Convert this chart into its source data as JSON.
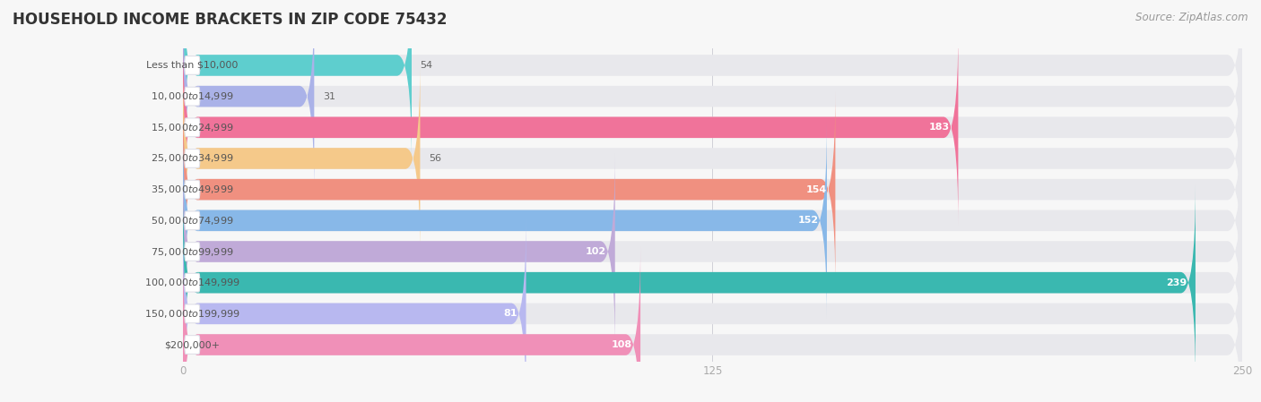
{
  "title": "HOUSEHOLD INCOME BRACKETS IN ZIP CODE 75432",
  "source": "Source: ZipAtlas.com",
  "categories": [
    "Less than $10,000",
    "$10,000 to $14,999",
    "$15,000 to $24,999",
    "$25,000 to $34,999",
    "$35,000 to $49,999",
    "$50,000 to $74,999",
    "$75,000 to $99,999",
    "$100,000 to $149,999",
    "$150,000 to $199,999",
    "$200,000+"
  ],
  "values": [
    54,
    31,
    183,
    56,
    154,
    152,
    102,
    239,
    81,
    108
  ],
  "bar_colors": [
    "#5ecece",
    "#aab2e8",
    "#f0739a",
    "#f5c98a",
    "#f09080",
    "#88b8e8",
    "#c0aad8",
    "#3ab8b0",
    "#b8b8f0",
    "#f090b8"
  ],
  "xlim": [
    0,
    250
  ],
  "xticks": [
    0,
    125,
    250
  ],
  "background_color": "#f7f7f7",
  "bar_bg_color": "#e8e8ec",
  "label_bg_color": "#ffffff",
  "title_color": "#333333",
  "source_color": "#999999",
  "value_color_inside": "#ffffff",
  "value_color_outside": "#666666",
  "title_fontsize": 12,
  "source_fontsize": 8.5,
  "label_fontsize": 8,
  "value_fontsize": 8
}
